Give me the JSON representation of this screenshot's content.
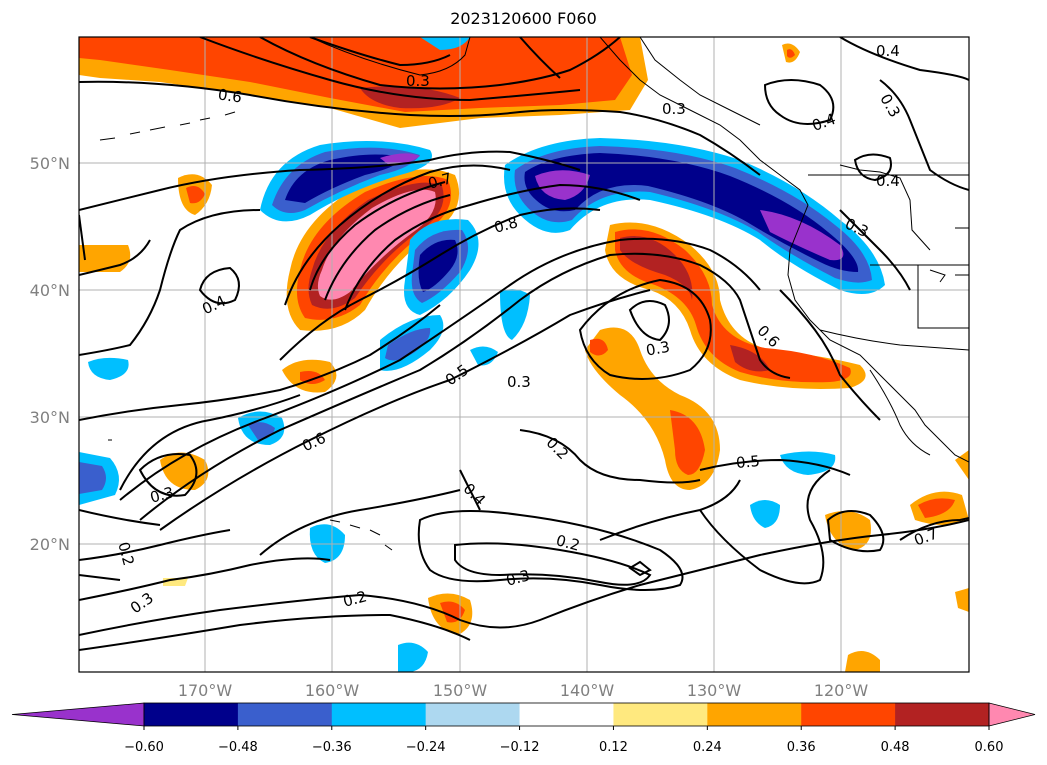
{
  "title": "2023120600 F060",
  "lat_labels": [
    "50°N",
    "40°N",
    "30°N",
    "20°N"
  ],
  "lon_labels": [
    "170°W",
    "160°W",
    "150°W",
    "140°W",
    "130°W",
    "120°W"
  ],
  "contour_labels": [
    "0.6",
    "0.3",
    "0.3",
    "0.4",
    "0.3",
    "0.4",
    "0.7",
    "0.8",
    "0.4",
    "0.3",
    "0.6",
    "0.3",
    "0.4",
    "0.3",
    "0.5",
    "0.6",
    "0.3",
    "0.2",
    "0.4",
    "0.5",
    "0.2",
    "0.3",
    "0.2",
    "0.3",
    "0.2",
    "0.7"
  ],
  "colorbar": {
    "ticks": [
      "−0.60",
      "−0.48",
      "−0.36",
      "−0.24",
      "−0.12",
      "0.12",
      "0.24",
      "0.36",
      "0.48",
      "0.60"
    ],
    "colors": [
      "#9932cc",
      "#00008b",
      "#3a5fcd",
      "#00bfff",
      "#add8f0",
      "#ffffff",
      "#ffe97f",
      "#ffa500",
      "#ff4500",
      "#b22222",
      "#ff88b0"
    ]
  }
}
